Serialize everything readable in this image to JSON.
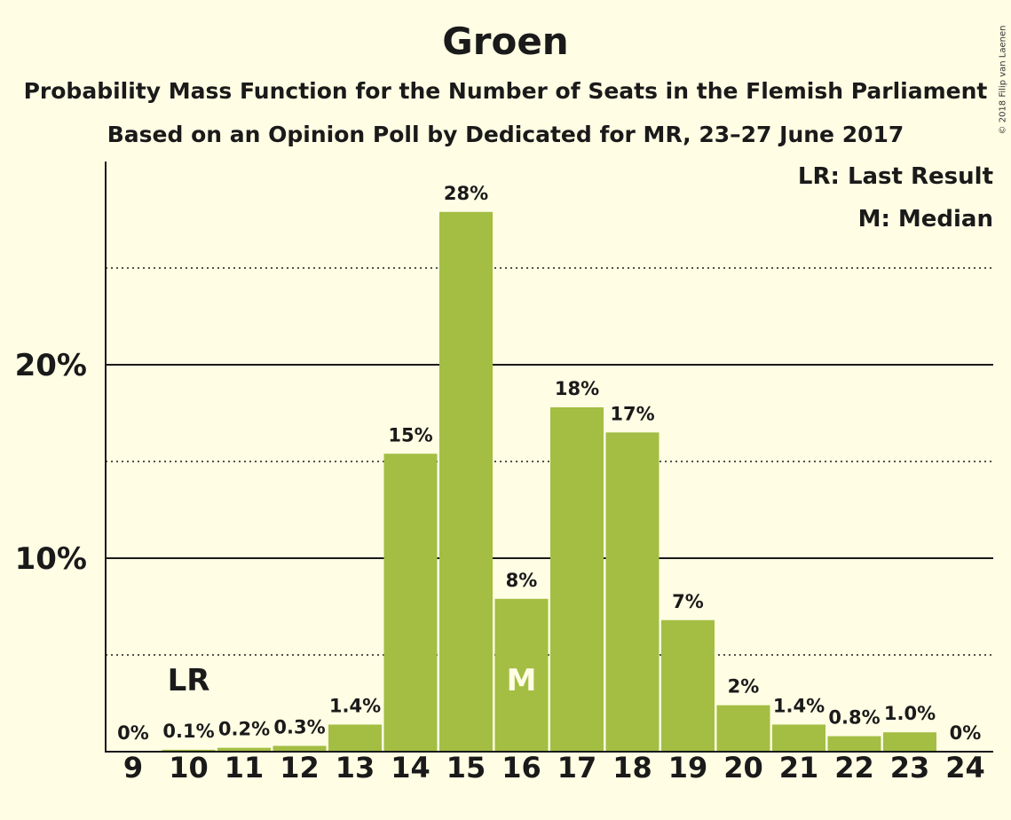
{
  "header": {
    "title": "Groen",
    "subtitle_line1": "Probability Mass Function for the Number of Seats in the Flemish Parliament",
    "subtitle_line2": "Based on an Opinion Poll by Dedicated for MR, 23–27 June 2017"
  },
  "legend": {
    "last_result": "LR: Last Result",
    "median": "M: Median"
  },
  "copyright": "© 2018 Filip van Laenen",
  "colors": {
    "background": "#fffde4",
    "bar": "#a3be43",
    "text": "#1a1a1a",
    "median_marker": "#fffde4"
  },
  "chart_data": {
    "type": "bar",
    "categories": [
      "9",
      "10",
      "11",
      "12",
      "13",
      "14",
      "15",
      "16",
      "17",
      "18",
      "19",
      "20",
      "21",
      "22",
      "23",
      "24"
    ],
    "values": [
      0,
      0.1,
      0.2,
      0.3,
      1.4,
      15.4,
      27.9,
      7.9,
      17.8,
      16.5,
      6.8,
      2.4,
      1.4,
      0.8,
      1.0,
      0
    ],
    "data_labels": [
      "0%",
      "0.1%",
      "0.2%",
      "0.3%",
      "1.4%",
      "15%",
      "28%",
      "8%",
      "18%",
      "17%",
      "7%",
      "2%",
      "1.4%",
      "0.8%",
      "1.0%",
      "0%"
    ],
    "y_ticks": [
      {
        "value": 10,
        "label": "10%"
      },
      {
        "value": 20,
        "label": "20%"
      }
    ],
    "minor_gridlines": [
      5,
      15,
      25
    ],
    "ylim": [
      0,
      30.5
    ],
    "last_result": {
      "category": "10",
      "label": "LR"
    },
    "median": {
      "category": "16",
      "label": "M"
    },
    "legend_position": "top-right"
  }
}
